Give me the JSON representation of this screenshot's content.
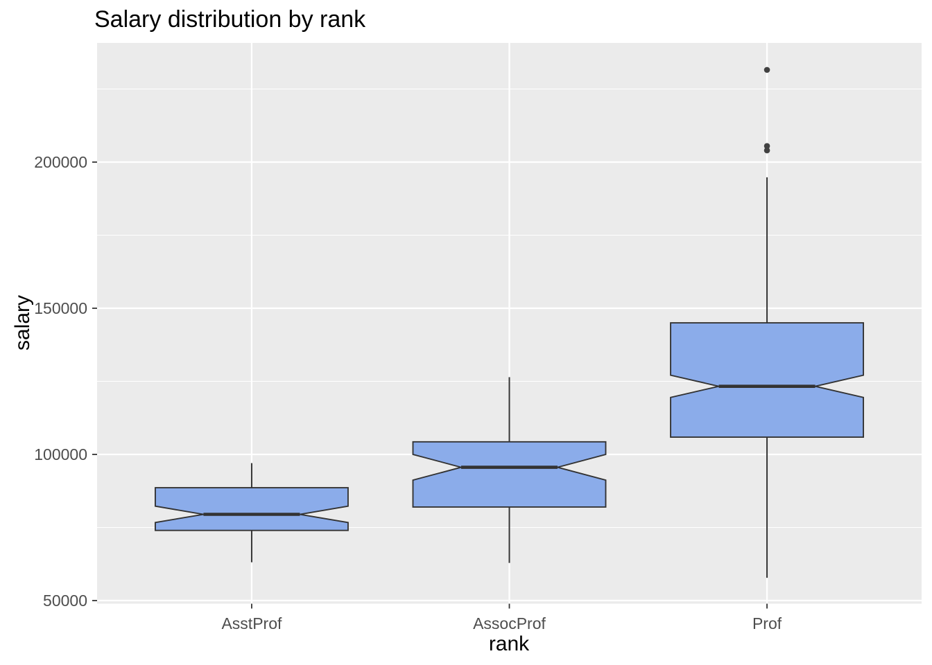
{
  "title": "Salary distribution by rank",
  "axes": {
    "x_title": "rank",
    "y_title": "salary",
    "x_tick_labels": [
      "AsstProf",
      "AssocProf",
      "Prof"
    ],
    "y_ticks": [
      {
        "value": 50000,
        "label": "50000"
      },
      {
        "value": 100000,
        "label": "100000"
      },
      {
        "value": 150000,
        "label": "150000"
      },
      {
        "value": 200000,
        "label": "200000"
      }
    ],
    "y_minor_values": [
      75000,
      125000,
      175000,
      225000
    ]
  },
  "colors": {
    "panel_bg": "#EBEBEB",
    "grid": "#FFFFFF",
    "box_fill": "#8BACEA",
    "box_stroke": "#333333",
    "median": "#333333",
    "outlier": "#424242",
    "tick_mark": "#333333",
    "tick_text": "#4d4d4d",
    "title_text": "#000000"
  },
  "chart_data": {
    "type": "boxplot",
    "notched": true,
    "title": "Salary distribution by rank",
    "xlabel": "rank",
    "ylabel": "salary",
    "categories": [
      "AsstProf",
      "AssocProf",
      "Prof"
    ],
    "ylim": [
      49100,
      240400
    ],
    "grid": true,
    "legend": "none",
    "series": [
      {
        "category": "AsstProf",
        "whisker_low": 63100,
        "q1": 74000,
        "median": 79500,
        "q3": 88600,
        "whisker_high": 97032,
        "notch_low": 76700,
        "notch_high": 82300,
        "outliers": []
      },
      {
        "category": "AssocProf",
        "whisker_low": 62884,
        "q1": 82000,
        "median": 95600,
        "q3": 104300,
        "whisker_high": 126431,
        "notch_low": 91200,
        "notch_high": 100000,
        "outliers": []
      },
      {
        "category": "Prof",
        "whisker_low": 57800,
        "q1": 105900,
        "median": 123300,
        "q3": 145000,
        "whisker_high": 194800,
        "notch_low": 119500,
        "notch_high": 127100,
        "outliers": [
          204000,
          205500,
          231545
        ]
      }
    ]
  }
}
